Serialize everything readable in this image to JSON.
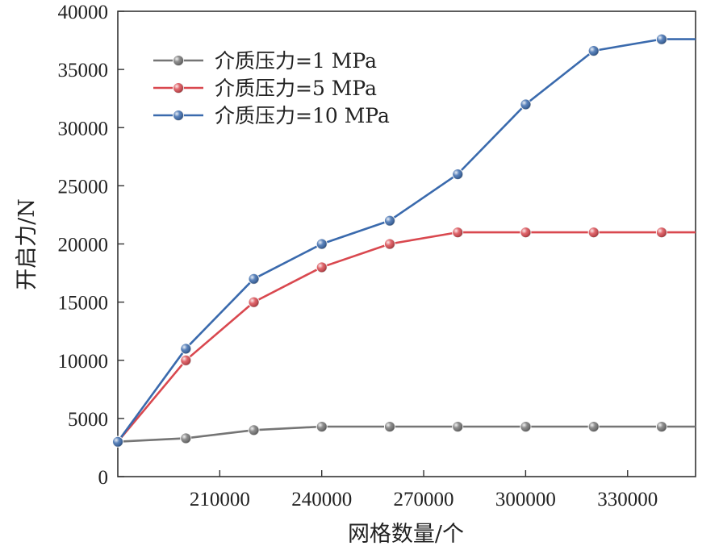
{
  "chart_data": {
    "type": "line",
    "title": "",
    "xlabel": "网格数量/个",
    "ylabel": "开启力/N",
    "xlim": [
      180000,
      350000
    ],
    "ylim": [
      0,
      40000
    ],
    "x_ticks": [
      210000,
      240000,
      270000,
      300000,
      330000
    ],
    "y_ticks": [
      0,
      5000,
      10000,
      15000,
      20000,
      25000,
      30000,
      35000,
      40000
    ],
    "x": [
      180000,
      200000,
      220000,
      240000,
      260000,
      280000,
      300000,
      320000,
      340000,
      350000
    ],
    "legend_position": "upper-left",
    "grid": false,
    "series": [
      {
        "name": "介质压力=1 MPa",
        "color": "#757575",
        "marker_x": [
          180000,
          200000,
          220000,
          240000,
          260000,
          280000,
          300000,
          320000,
          340000
        ],
        "values": [
          3000,
          3300,
          4000,
          4300,
          4300,
          4300,
          4300,
          4300,
          4300,
          4300
        ]
      },
      {
        "name": "介质压力=5 MPa",
        "color": "#d9484f",
        "marker_x": [
          180000,
          200000,
          220000,
          240000,
          260000,
          280000,
          300000,
          320000,
          340000
        ],
        "values": [
          3000,
          10000,
          15000,
          18000,
          20000,
          21000,
          21000,
          21000,
          21000,
          21000
        ]
      },
      {
        "name": "介质压力=10 MPa",
        "color": "#3a6aad",
        "marker_x": [
          180000,
          200000,
          220000,
          240000,
          260000,
          280000,
          300000,
          320000,
          340000
        ],
        "values": [
          3000,
          11000,
          17000,
          20000,
          22000,
          26000,
          32000,
          36600,
          37600,
          37600
        ]
      }
    ]
  }
}
